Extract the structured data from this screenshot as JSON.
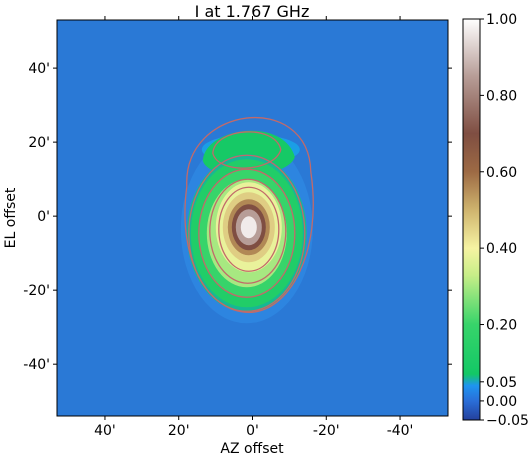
{
  "chart_data": {
    "type": "heatmap",
    "title": "I at 1.767 GHz",
    "xlabel": "AZ offset",
    "ylabel": "EL offset",
    "xlim": [
      53,
      -53
    ],
    "ylim": [
      -54,
      53
    ],
    "x_ticks": [
      {
        "value": 40,
        "label": "40'"
      },
      {
        "value": 20,
        "label": "20'"
      },
      {
        "value": 0,
        "label": "0'"
      },
      {
        "value": -20,
        "label": "-20'"
      },
      {
        "value": -40,
        "label": "-40'"
      }
    ],
    "y_ticks": [
      {
        "value": 40,
        "label": "40'"
      },
      {
        "value": 20,
        "label": "20'"
      },
      {
        "value": 0,
        "label": "0'"
      },
      {
        "value": -20,
        "label": "-20'"
      },
      {
        "value": -40,
        "label": "-40'"
      }
    ],
    "colorbar": {
      "range": [
        -0.05,
        1.0
      ],
      "ticks": [
        {
          "value": 1.0,
          "label": "1.00"
        },
        {
          "value": 0.8,
          "label": "0.80"
        },
        {
          "value": 0.6,
          "label": "0.60"
        },
        {
          "value": 0.4,
          "label": "0.40"
        },
        {
          "value": 0.2,
          "label": "0.20"
        },
        {
          "value": 0.05,
          "label": "0.05"
        },
        {
          "value": 0.0,
          "label": "0.00"
        },
        {
          "value": -0.05,
          "label": "−0.05"
        }
      ],
      "stops": [
        {
          "value": -0.05,
          "color": "#24409c"
        },
        {
          "value": 0.0,
          "color": "#2a6ed8"
        },
        {
          "value": 0.04,
          "color": "#1e94f0"
        },
        {
          "value": 0.07,
          "color": "#13c866"
        },
        {
          "value": 0.2,
          "color": "#37d46a"
        },
        {
          "value": 0.33,
          "color": "#c8ee88"
        },
        {
          "value": 0.4,
          "color": "#f6f3a2"
        },
        {
          "value": 0.5,
          "color": "#cfb46e"
        },
        {
          "value": 0.6,
          "color": "#9d6a44"
        },
        {
          "value": 0.7,
          "color": "#7f4e42"
        },
        {
          "value": 0.85,
          "color": "#b79d97"
        },
        {
          "value": 1.0,
          "color": "#ffffff"
        }
      ]
    },
    "field_color": "#2a79d6",
    "source": {
      "center": [
        1,
        -3
      ],
      "peak": 1.0
    },
    "contours": {
      "color": "#c26a6a",
      "levels": [
        0.05,
        0.1,
        0.2,
        0.3,
        0.4
      ]
    }
  }
}
